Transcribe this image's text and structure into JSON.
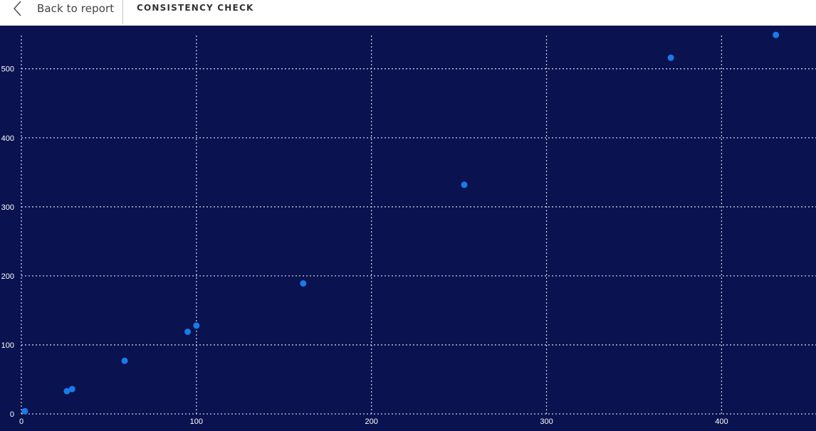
{
  "header": {
    "back_label": "Back to report",
    "page_title": "CONSISTENCY CHECK"
  },
  "colors": {
    "background": "#0a1250",
    "grid": "#c9cbe0",
    "point": "#1a7ae8",
    "tick_text": "#ffffff"
  },
  "icons": {
    "back": "chevron-left-icon"
  },
  "chart_data": {
    "type": "scatter",
    "title": "",
    "xlabel": "",
    "ylabel": "",
    "grid": true,
    "xlim": [
      0,
      450
    ],
    "ylim": [
      0,
      550
    ],
    "xticks": [
      0,
      100,
      200,
      300,
      400
    ],
    "yticks": [
      0,
      100,
      200,
      300,
      400,
      500
    ],
    "points": [
      {
        "x": 2,
        "y": 4
      },
      {
        "x": 26,
        "y": 33
      },
      {
        "x": 29,
        "y": 36
      },
      {
        "x": 59,
        "y": 77
      },
      {
        "x": 95,
        "y": 119
      },
      {
        "x": 100,
        "y": 128
      },
      {
        "x": 161,
        "y": 189
      },
      {
        "x": 253,
        "y": 332
      },
      {
        "x": 371,
        "y": 516
      },
      {
        "x": 431,
        "y": 549
      }
    ]
  }
}
